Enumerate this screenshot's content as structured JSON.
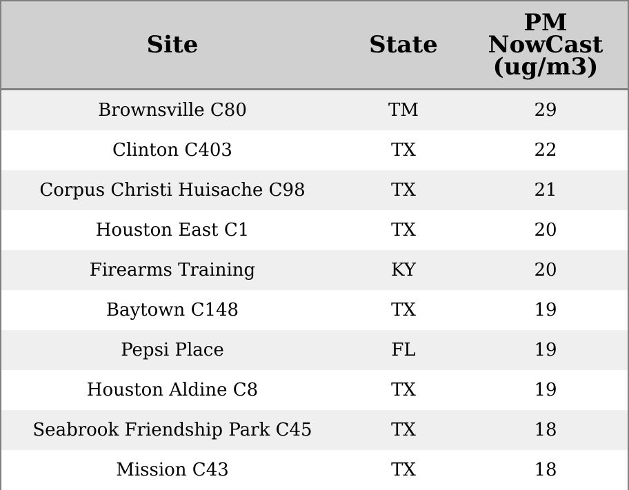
{
  "chart_data": {
    "type": "table",
    "columns": [
      "Site",
      "State",
      "PM NowCast (ug/m3)"
    ],
    "header_lines": {
      "site": [
        "Site"
      ],
      "state": [
        "State"
      ],
      "pm": [
        "PM",
        "NowCast",
        "(ug/m3)"
      ]
    },
    "rows": [
      {
        "site": "Brownsville C80",
        "state": "TM",
        "pm": "29"
      },
      {
        "site": "Clinton C403",
        "state": "TX",
        "pm": "22"
      },
      {
        "site": "Corpus Christi Huisache C98",
        "state": "TX",
        "pm": "21"
      },
      {
        "site": "Houston East C1",
        "state": "TX",
        "pm": "20"
      },
      {
        "site": "Firearms Training",
        "state": "KY",
        "pm": "20"
      },
      {
        "site": "Baytown C148",
        "state": "TX",
        "pm": "19"
      },
      {
        "site": "Pepsi Place",
        "state": "FL",
        "pm": "19"
      },
      {
        "site": "Houston Aldine C8",
        "state": "TX",
        "pm": "19"
      },
      {
        "site": "Seabrook Friendship Park C45",
        "state": "TX",
        "pm": "18"
      },
      {
        "site": "Mission C43",
        "state": "TX",
        "pm": "18"
      }
    ]
  },
  "colors": {
    "header_bg": "#d0d0d0",
    "row_alt_bg": "#efefef",
    "row_bg": "#ffffff",
    "border": "#808080"
  }
}
